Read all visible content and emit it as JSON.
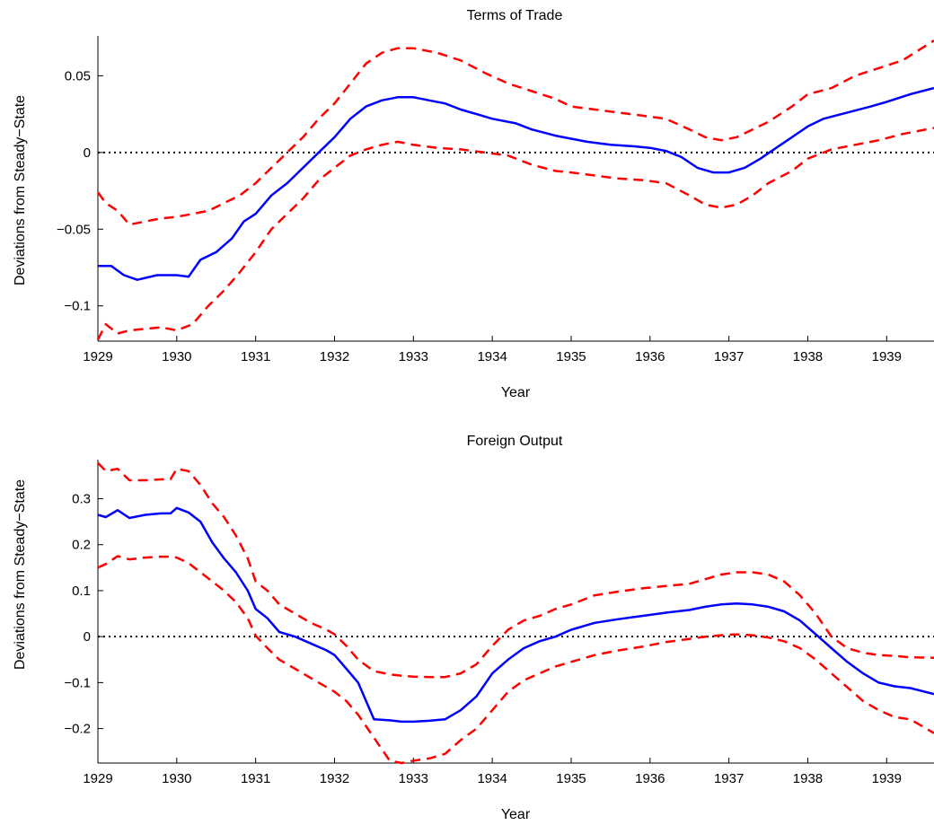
{
  "chart_data": [
    {
      "type": "line",
      "title": "Terms of Trade",
      "xlabel": "Year",
      "ylabel": "Deviations from Steady−State",
      "xlim": [
        1929.0,
        1939.6
      ],
      "ylim": [
        -0.123,
        0.076
      ],
      "xticks": [
        1929,
        1930,
        1931,
        1932,
        1933,
        1934,
        1935,
        1936,
        1937,
        1938,
        1939
      ],
      "xtick_labels": [
        "1929",
        "1930",
        "1931",
        "1932",
        "1933",
        "1934",
        "1935",
        "1936",
        "1937",
        "1938",
        "1939"
      ],
      "yticks": [
        -0.1,
        -0.05,
        0,
        0.05
      ],
      "ytick_labels": [
        "−0.1",
        "−0.05",
        "0",
        "0.05"
      ],
      "zero_line": {
        "y": 0,
        "style": "dotted",
        "color": "#000000"
      },
      "series": [
        {
          "role": "estimate",
          "color": "#0000ff",
          "style": "solid",
          "x": [
            1929.0,
            1929.17,
            1929.33,
            1929.5,
            1929.75,
            1930.0,
            1930.15,
            1930.3,
            1930.5,
            1930.7,
            1930.85,
            1931.0,
            1931.2,
            1931.4,
            1931.6,
            1931.8,
            1932.0,
            1932.2,
            1932.4,
            1932.6,
            1932.8,
            1933.0,
            1933.2,
            1933.4,
            1933.6,
            1933.8,
            1934.0,
            1934.3,
            1934.5,
            1934.8,
            1935.0,
            1935.2,
            1935.5,
            1935.8,
            1936.0,
            1936.2,
            1936.4,
            1936.6,
            1936.8,
            1937.0,
            1937.2,
            1937.4,
            1937.6,
            1937.8,
            1938.0,
            1938.2,
            1938.5,
            1938.8,
            1939.0,
            1939.3,
            1939.6
          ],
          "y": [
            -0.074,
            -0.074,
            -0.08,
            -0.083,
            -0.08,
            -0.08,
            -0.081,
            -0.07,
            -0.065,
            -0.056,
            -0.045,
            -0.04,
            -0.028,
            -0.02,
            -0.01,
            0.0,
            0.01,
            0.022,
            0.03,
            0.034,
            0.036,
            0.036,
            0.034,
            0.032,
            0.028,
            0.025,
            0.022,
            0.019,
            0.015,
            0.011,
            0.009,
            0.007,
            0.005,
            0.004,
            0.003,
            0.001,
            -0.003,
            -0.01,
            -0.013,
            -0.013,
            -0.01,
            -0.004,
            0.003,
            0.01,
            0.017,
            0.022,
            0.026,
            0.03,
            0.033,
            0.038,
            0.042
          ]
        },
        {
          "role": "upper band",
          "color": "#ff0000",
          "style": "dashed",
          "x": [
            1929.0,
            1929.1,
            1929.25,
            1929.4,
            1929.6,
            1929.8,
            1930.0,
            1930.2,
            1930.4,
            1930.6,
            1930.8,
            1931.0,
            1931.2,
            1931.4,
            1931.6,
            1931.8,
            1932.0,
            1932.2,
            1932.4,
            1932.6,
            1932.8,
            1933.0,
            1933.3,
            1933.6,
            1933.9,
            1934.2,
            1934.5,
            1934.8,
            1935.0,
            1935.3,
            1935.6,
            1935.9,
            1936.2,
            1936.5,
            1936.7,
            1936.9,
            1937.1,
            1937.3,
            1937.5,
            1937.8,
            1938.0,
            1938.3,
            1938.6,
            1938.9,
            1939.2,
            1939.6
          ],
          "y": [
            -0.026,
            -0.033,
            -0.038,
            -0.047,
            -0.045,
            -0.043,
            -0.042,
            -0.04,
            -0.038,
            -0.033,
            -0.028,
            -0.02,
            -0.01,
            0.0,
            0.01,
            0.022,
            0.032,
            0.045,
            0.058,
            0.065,
            0.068,
            0.068,
            0.065,
            0.06,
            0.052,
            0.045,
            0.04,
            0.035,
            0.03,
            0.028,
            0.026,
            0.024,
            0.022,
            0.015,
            0.01,
            0.008,
            0.01,
            0.015,
            0.02,
            0.03,
            0.038,
            0.042,
            0.05,
            0.055,
            0.06,
            0.073
          ]
        },
        {
          "role": "lower band",
          "color": "#ff0000",
          "style": "dashed",
          "x": [
            1929.0,
            1929.1,
            1929.25,
            1929.4,
            1929.6,
            1929.8,
            1930.0,
            1930.2,
            1930.4,
            1930.6,
            1930.8,
            1931.0,
            1931.2,
            1931.4,
            1931.6,
            1931.8,
            1932.0,
            1932.2,
            1932.4,
            1932.6,
            1932.8,
            1933.0,
            1933.3,
            1933.6,
            1933.9,
            1934.2,
            1934.5,
            1934.8,
            1935.0,
            1935.3,
            1935.6,
            1935.9,
            1936.2,
            1936.5,
            1936.7,
            1936.9,
            1937.1,
            1937.3,
            1937.5,
            1937.8,
            1938.0,
            1938.3,
            1938.6,
            1938.9,
            1939.2,
            1939.6
          ],
          "y": [
            -0.122,
            -0.112,
            -0.118,
            -0.116,
            -0.115,
            -0.114,
            -0.116,
            -0.112,
            -0.1,
            -0.09,
            -0.078,
            -0.065,
            -0.05,
            -0.04,
            -0.03,
            -0.018,
            -0.01,
            -0.002,
            0.002,
            0.005,
            0.007,
            0.005,
            0.003,
            0.002,
            0.0,
            -0.002,
            -0.008,
            -0.012,
            -0.013,
            -0.015,
            -0.017,
            -0.018,
            -0.02,
            -0.028,
            -0.034,
            -0.036,
            -0.034,
            -0.028,
            -0.02,
            -0.012,
            -0.004,
            0.002,
            0.005,
            0.008,
            0.012,
            0.016
          ]
        }
      ]
    },
    {
      "type": "line",
      "title": "Foreign Output",
      "xlabel": "Year",
      "ylabel": "Deviations from Steady−State",
      "xlim": [
        1929.0,
        1939.6
      ],
      "ylim": [
        -0.275,
        0.385
      ],
      "xticks": [
        1929,
        1930,
        1931,
        1932,
        1933,
        1934,
        1935,
        1936,
        1937,
        1938,
        1939
      ],
      "xtick_labels": [
        "1929",
        "1930",
        "1931",
        "1932",
        "1933",
        "1934",
        "1935",
        "1936",
        "1937",
        "1938",
        "1939"
      ],
      "yticks": [
        -0.2,
        -0.1,
        0,
        0.1,
        0.2,
        0.3
      ],
      "ytick_labels": [
        "−0.2",
        "−0.1",
        "0",
        "0.1",
        "0.2",
        "0.3"
      ],
      "zero_line": {
        "y": 0,
        "style": "dotted",
        "color": "#000000"
      },
      "series": [
        {
          "role": "estimate",
          "color": "#0000ff",
          "style": "solid",
          "x": [
            1929.0,
            1929.1,
            1929.25,
            1929.4,
            1929.6,
            1929.8,
            1929.92,
            1930.0,
            1930.15,
            1930.3,
            1930.45,
            1930.6,
            1930.75,
            1930.9,
            1931.0,
            1931.15,
            1931.3,
            1931.5,
            1931.7,
            1931.9,
            1932.0,
            1932.15,
            1932.3,
            1932.5,
            1932.7,
            1932.85,
            1933.0,
            1933.2,
            1933.4,
            1933.6,
            1933.8,
            1934.0,
            1934.2,
            1934.4,
            1934.6,
            1934.8,
            1935.0,
            1935.3,
            1935.6,
            1935.9,
            1936.2,
            1936.5,
            1936.7,
            1936.9,
            1937.1,
            1937.3,
            1937.5,
            1937.7,
            1937.9,
            1938.1,
            1938.3,
            1938.5,
            1938.7,
            1938.9,
            1939.1,
            1939.3,
            1939.6
          ],
          "y": [
            0.265,
            0.26,
            0.275,
            0.258,
            0.265,
            0.268,
            0.268,
            0.28,
            0.27,
            0.25,
            0.205,
            0.17,
            0.14,
            0.1,
            0.06,
            0.04,
            0.01,
            0.0,
            -0.015,
            -0.03,
            -0.04,
            -0.07,
            -0.1,
            -0.18,
            -0.182,
            -0.185,
            -0.185,
            -0.183,
            -0.18,
            -0.16,
            -0.13,
            -0.08,
            -0.05,
            -0.025,
            -0.01,
            0.0,
            0.015,
            0.03,
            0.038,
            0.045,
            0.052,
            0.058,
            0.065,
            0.07,
            0.072,
            0.07,
            0.065,
            0.055,
            0.035,
            0.005,
            -0.025,
            -0.055,
            -0.08,
            -0.1,
            -0.108,
            -0.112,
            -0.125
          ]
        },
        {
          "role": "upper band",
          "color": "#ff0000",
          "style": "dashed",
          "x": [
            1929.0,
            1929.1,
            1929.25,
            1929.4,
            1929.6,
            1929.8,
            1929.92,
            1930.0,
            1930.15,
            1930.3,
            1930.45,
            1930.6,
            1930.75,
            1930.9,
            1931.0,
            1931.15,
            1931.3,
            1931.5,
            1931.7,
            1931.9,
            1932.0,
            1932.15,
            1932.3,
            1932.5,
            1932.7,
            1932.85,
            1933.0,
            1933.2,
            1933.4,
            1933.6,
            1933.8,
            1934.0,
            1934.2,
            1934.4,
            1934.6,
            1934.8,
            1935.0,
            1935.3,
            1935.6,
            1935.9,
            1936.2,
            1936.5,
            1936.7,
            1936.9,
            1937.1,
            1937.3,
            1937.5,
            1937.7,
            1937.9,
            1938.1,
            1938.3,
            1938.5,
            1938.7,
            1938.9,
            1939.1,
            1939.3,
            1939.6
          ],
          "y": [
            0.378,
            0.36,
            0.365,
            0.34,
            0.34,
            0.342,
            0.342,
            0.365,
            0.36,
            0.33,
            0.29,
            0.26,
            0.22,
            0.17,
            0.12,
            0.1,
            0.07,
            0.05,
            0.03,
            0.015,
            0.005,
            -0.02,
            -0.05,
            -0.075,
            -0.082,
            -0.085,
            -0.087,
            -0.088,
            -0.088,
            -0.08,
            -0.06,
            -0.02,
            0.015,
            0.035,
            0.045,
            0.06,
            0.07,
            0.09,
            0.098,
            0.105,
            0.11,
            0.115,
            0.125,
            0.135,
            0.14,
            0.14,
            0.135,
            0.12,
            0.09,
            0.05,
            0.0,
            -0.025,
            -0.035,
            -0.04,
            -0.042,
            -0.045,
            -0.046
          ]
        },
        {
          "role": "lower band",
          "color": "#ff0000",
          "style": "dashed",
          "x": [
            1929.0,
            1929.1,
            1929.25,
            1929.4,
            1929.6,
            1929.8,
            1929.92,
            1930.0,
            1930.15,
            1930.3,
            1930.45,
            1930.6,
            1930.75,
            1930.9,
            1931.0,
            1931.15,
            1931.3,
            1931.5,
            1931.7,
            1931.9,
            1932.0,
            1932.15,
            1932.3,
            1932.5,
            1932.7,
            1932.85,
            1933.0,
            1933.2,
            1933.4,
            1933.6,
            1933.8,
            1934.0,
            1934.2,
            1934.4,
            1934.6,
            1934.8,
            1935.0,
            1935.3,
            1935.6,
            1935.9,
            1936.2,
            1936.5,
            1936.7,
            1936.9,
            1937.1,
            1937.3,
            1937.5,
            1937.7,
            1937.9,
            1938.1,
            1938.3,
            1938.5,
            1938.7,
            1938.9,
            1939.1,
            1939.3,
            1939.6
          ],
          "y": [
            0.15,
            0.158,
            0.175,
            0.168,
            0.172,
            0.174,
            0.174,
            0.172,
            0.16,
            0.14,
            0.12,
            0.1,
            0.075,
            0.04,
            0.002,
            -0.025,
            -0.05,
            -0.07,
            -0.09,
            -0.11,
            -0.12,
            -0.14,
            -0.17,
            -0.22,
            -0.27,
            -0.275,
            -0.27,
            -0.265,
            -0.255,
            -0.225,
            -0.2,
            -0.16,
            -0.12,
            -0.095,
            -0.08,
            -0.065,
            -0.055,
            -0.04,
            -0.03,
            -0.022,
            -0.012,
            -0.005,
            0.0,
            0.003,
            0.005,
            0.003,
            -0.002,
            -0.01,
            -0.025,
            -0.05,
            -0.08,
            -0.11,
            -0.14,
            -0.16,
            -0.175,
            -0.18,
            -0.21
          ]
        }
      ]
    }
  ]
}
